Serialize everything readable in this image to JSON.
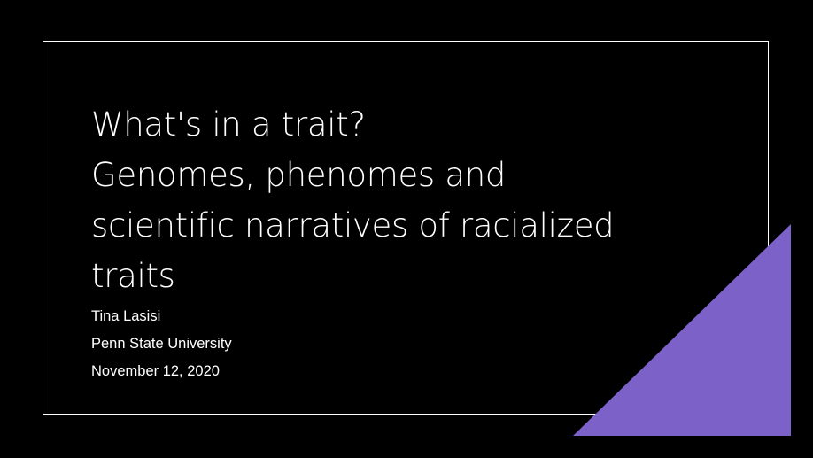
{
  "slide": {
    "title_lines": [
      "What's in a trait?",
      "Genomes, phenomes and",
      "scientific narratives of racialized",
      "traits"
    ],
    "author": "Tina Lasisi",
    "institution": "Penn State University",
    "date": "November 12, 2020"
  },
  "colors": {
    "background": "#000000",
    "text": "#ffffff",
    "frame": "#ffffff",
    "accent": "#7c62c8"
  }
}
